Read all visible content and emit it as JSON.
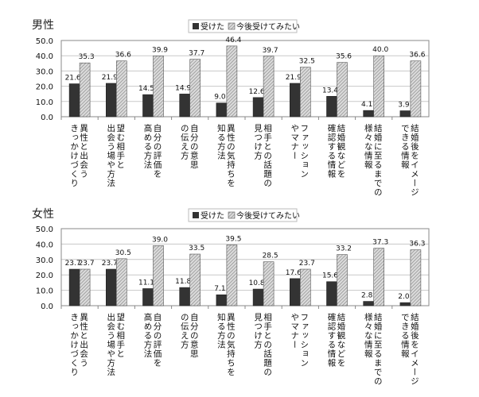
{
  "colors": {
    "received": "#333333",
    "want_hatch": "#9a9a9a",
    "want_bg": "#d8d8d8",
    "grid": "#c8c8c8",
    "frame": "#888888"
  },
  "chart_data": [
    {
      "type": "bar",
      "title": "男性",
      "legend": [
        "受けた",
        "今後受けてみたい"
      ],
      "legend_placement": "top",
      "ylim": [
        0,
        50
      ],
      "yticks": [
        "0.0",
        "10.0",
        "20.0",
        "30.0",
        "40.0",
        "50.0"
      ],
      "grid": true,
      "categories": [
        [
          "異性と出会う",
          "きっかけづくり"
        ],
        [
          "望む相手と",
          "出会う場や方法"
        ],
        [
          "自分の評価を",
          "高める方法"
        ],
        [
          "自分の意思",
          "の伝え方"
        ],
        [
          "異性の気持ちを",
          "知る方法"
        ],
        [
          "相手との話題の",
          "見つけ方"
        ],
        [
          "ファッション",
          "やマナー"
        ],
        [
          "結婚観などを",
          "確認する情報"
        ],
        [
          "結婚に至るまでの",
          "様々な情報"
        ],
        [
          "結婚後をイメージ",
          "できる情報"
        ]
      ],
      "series": [
        {
          "name": "受けた",
          "values": [
            21.6,
            21.9,
            14.5,
            14.9,
            9.0,
            12.6,
            21.9,
            13.4,
            4.1,
            3.9
          ]
        },
        {
          "name": "今後受けてみたい",
          "values": [
            35.3,
            36.6,
            39.9,
            37.7,
            46.4,
            39.7,
            32.5,
            35.6,
            40.0,
            36.6
          ]
        }
      ]
    },
    {
      "type": "bar",
      "title": "女性",
      "legend": [
        "受けた",
        "今後受けてみたい"
      ],
      "legend_placement": "top",
      "ylim": [
        0,
        50
      ],
      "yticks": [
        "0.0",
        "10.0",
        "20.0",
        "30.0",
        "40.0",
        "50.0"
      ],
      "grid": true,
      "categories": [
        [
          "異性と出会う",
          "きっかけづくり"
        ],
        [
          "望む相手と",
          "出会う場や方法"
        ],
        [
          "自分の評価を",
          "高める方法"
        ],
        [
          "自分の意思",
          "の伝え方"
        ],
        [
          "異性の気持ちを",
          "知る方法"
        ],
        [
          "相手との話題の",
          "見つけ方"
        ],
        [
          "ファッション",
          "やマナー"
        ],
        [
          "結婚観などを",
          "確認する情報"
        ],
        [
          "結婚に至るまでの",
          "様々な情報"
        ],
        [
          "結婚後をイメージ",
          "できる情報"
        ]
      ],
      "series": [
        {
          "name": "受けた",
          "values": [
            23.7,
            23.7,
            11.1,
            11.8,
            7.1,
            10.8,
            17.6,
            15.6,
            2.8,
            2.0
          ]
        },
        {
          "name": "今後受けてみたい",
          "values": [
            23.7,
            30.5,
            39.0,
            33.5,
            39.5,
            28.5,
            23.7,
            33.2,
            37.3,
            36.3
          ]
        }
      ]
    }
  ]
}
